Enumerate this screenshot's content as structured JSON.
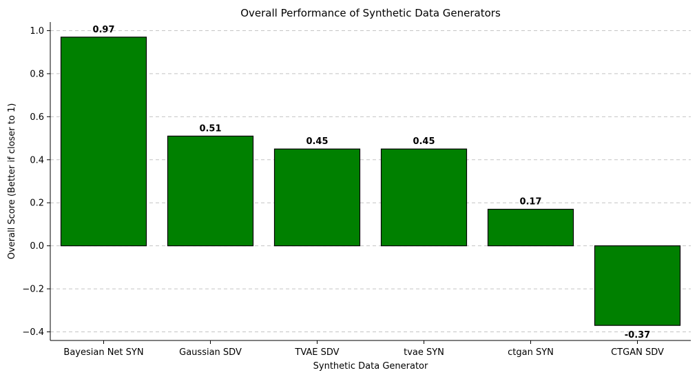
{
  "chart_data": {
    "type": "bar",
    "title": "Overall Performance of Synthetic Data Generators",
    "xlabel": "Synthetic Data Generator",
    "ylabel": "Overall Score (Better if closer to 1)",
    "categories": [
      "Bayesian Net SYN",
      "Gaussian SDV",
      "TVAE SDV",
      "tvae SYN",
      "ctgan SYN",
      "CTGAN SDV"
    ],
    "values": [
      0.97,
      0.51,
      0.45,
      0.45,
      0.17,
      -0.37
    ],
    "value_labels": [
      "0.97",
      "0.51",
      "0.45",
      "0.45",
      "0.17",
      "-0.37"
    ],
    "ylim": [
      -0.44,
      1.04
    ],
    "yticks": [
      -0.4,
      -0.2,
      0.0,
      0.2,
      0.4,
      0.6,
      0.8,
      1.0
    ],
    "ytick_labels": [
      "−0.4",
      "−0.2",
      "0.0",
      "0.2",
      "0.4",
      "0.6",
      "0.8",
      "1.0"
    ],
    "grid": "y-dashed",
    "bar_color": "#008000",
    "edge_color": "#000000"
  }
}
